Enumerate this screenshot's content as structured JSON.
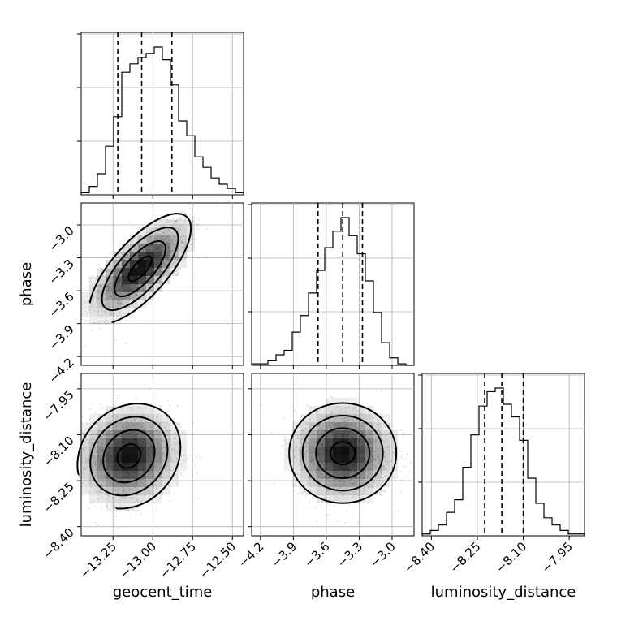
{
  "chart_data": {
    "type": "corner",
    "parameters": [
      "geocent_time",
      "phase",
      "luminosity_distance"
    ],
    "axes": {
      "geocent_time": {
        "label": "geocent_time",
        "range": [
          -13.45,
          -12.43
        ],
        "ticks": [
          -13.25,
          -13.0,
          -12.75,
          -12.5
        ],
        "tick_labels": [
          "−13.25",
          "−13.00",
          "−12.75",
          "−12.50"
        ]
      },
      "phase": {
        "label": "phase",
        "range": [
          -4.28,
          -2.8
        ],
        "ticks": [
          -4.2,
          -3.9,
          -3.6,
          -3.3,
          -3.0
        ],
        "tick_labels": [
          "−4.2",
          "−3.9",
          "−3.6",
          "−3.3",
          "−3.0"
        ]
      },
      "luminosity_distance": {
        "label": "luminosity_distance",
        "range": [
          -8.43,
          -7.9
        ],
        "ticks": [
          -8.4,
          -8.25,
          -8.1,
          -7.95
        ],
        "tick_labels": [
          "−8.40",
          "−8.25",
          "−8.10",
          "−7.95"
        ]
      }
    },
    "histograms": [
      {
        "param": "geocent_time",
        "quantiles": [
          -13.22,
          -13.07,
          -12.88
        ],
        "counts": [
          1,
          4,
          10,
          23,
          37,
          58,
          62,
          65,
          67,
          70,
          64,
          52,
          35,
          28,
          18,
          13,
          8,
          5,
          3,
          1
        ]
      },
      {
        "param": "phase",
        "quantiles": [
          -3.675,
          -3.45,
          -3.27
        ],
        "counts": [
          1,
          1,
          3,
          7,
          10,
          22,
          33,
          48,
          63,
          78,
          89,
          98,
          86,
          74,
          56,
          35,
          15,
          5,
          1,
          0
        ]
      },
      {
        "param": "luminosity_distance",
        "quantiles": [
          -8.226,
          -8.17,
          -8.1
        ],
        "counts": [
          1,
          3,
          6,
          13,
          20,
          38,
          56,
          72,
          80,
          82,
          73,
          66,
          53,
          32,
          18,
          10,
          6,
          3,
          1,
          1
        ]
      }
    ],
    "scatter_2d": [
      {
        "x": "geocent_time",
        "y": "phase",
        "peak": [
          -13.08,
          -3.4
        ],
        "correlation": 0.7
      },
      {
        "x": "geocent_time",
        "y": "luminosity_distance",
        "peak": [
          -13.15,
          -8.17
        ],
        "correlation": 0.1
      },
      {
        "x": "phase",
        "y": "luminosity_distance",
        "peak": [
          -3.45,
          -8.16
        ],
        "correlation": 0.0
      }
    ]
  }
}
